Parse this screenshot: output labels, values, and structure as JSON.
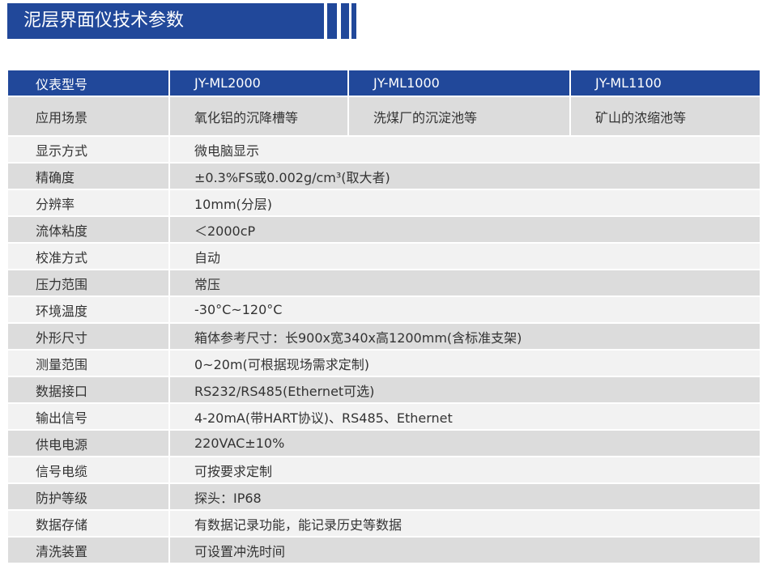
{
  "title": "泥层界面仪技术参数",
  "colors": {
    "accent": "#21489a",
    "row_gray": "#dcdcdc",
    "row_light": "#f2f2f2"
  },
  "header": {
    "label": "仪表型号",
    "models": [
      "JY-ML2000",
      "JY-ML1000",
      "JY-ML1100"
    ]
  },
  "application": {
    "label": "应用场景",
    "values": [
      "氧化铝的沉降槽等",
      "洗煤厂的沉淀池等",
      "矿山的浓缩池等"
    ]
  },
  "rows": [
    {
      "label": "显示方式",
      "value": "微电脑显示"
    },
    {
      "label": "精确度",
      "value": "±0.3%FS或0.002g/cm³(取大者)"
    },
    {
      "label": "分辨率",
      "value": "10mm(分层)"
    },
    {
      "label": "流体粘度",
      "value": "＜2000cP"
    },
    {
      "label": "校准方式",
      "value": "自动"
    },
    {
      "label": "压力范围",
      "value": "常压"
    },
    {
      "label": "环境温度",
      "value": "-30°C~120°C"
    },
    {
      "label": "外形尺寸",
      "value": "箱体参考尺寸：长900x宽340x高1200mm(含标准支架)"
    },
    {
      "label": "测量范围",
      "value": "0~20m(可根据现场需求定制)"
    },
    {
      "label": "数据接口",
      "value": "RS232/RS485(Ethernet可选)"
    },
    {
      "label": "输出信号",
      "value": "4-20mA(带HART协议)、RS485、Ethernet"
    },
    {
      "label": "供电电源",
      "value": "220VAC±10%"
    },
    {
      "label": "信号电缆",
      "value": "可按要求定制"
    },
    {
      "label": "防护等级",
      "value": "探头：IP68"
    },
    {
      "label": "数据存储",
      "value": "有数据记录功能，能记录历史等数据"
    },
    {
      "label": "清洗装置",
      "value": "可设置冲洗时间"
    }
  ]
}
